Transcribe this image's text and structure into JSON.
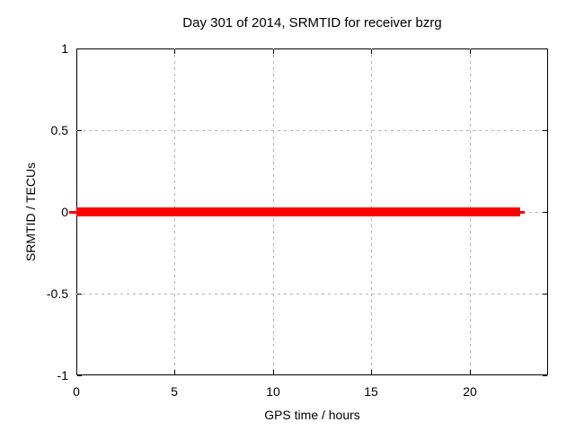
{
  "chart_data": {
    "type": "line",
    "title": "Day 301 of 2014, SRMTID for receiver bzrg",
    "xlabel": "GPS time / hours",
    "ylabel": "SRMTID / TECUs",
    "xlim": [
      0,
      24
    ],
    "ylim": [
      -1,
      1
    ],
    "x_ticks": [
      0,
      5,
      10,
      15,
      20
    ],
    "x_tick_labels": [
      "0",
      "5",
      "10",
      "15",
      "20"
    ],
    "y_ticks": [
      -1,
      -0.5,
      0,
      0.5,
      1
    ],
    "y_tick_labels": [
      "-1",
      "-0.5",
      "0",
      "0.5",
      "1"
    ],
    "grid": true,
    "grid_style": "dashed",
    "legend": false,
    "series": [
      {
        "name": "SRMTID",
        "color": "#ff0000",
        "y_value": 0,
        "x_start": 0,
        "x_end": 22.8,
        "description": "thick horizontal red line at y=0 spanning 0 to ~22.8 hours"
      }
    ],
    "colors": {
      "line": "#ff0000",
      "grid": "#b4b4b4",
      "axis": "#000000",
      "background": "#ffffff",
      "text": "#000000"
    }
  }
}
